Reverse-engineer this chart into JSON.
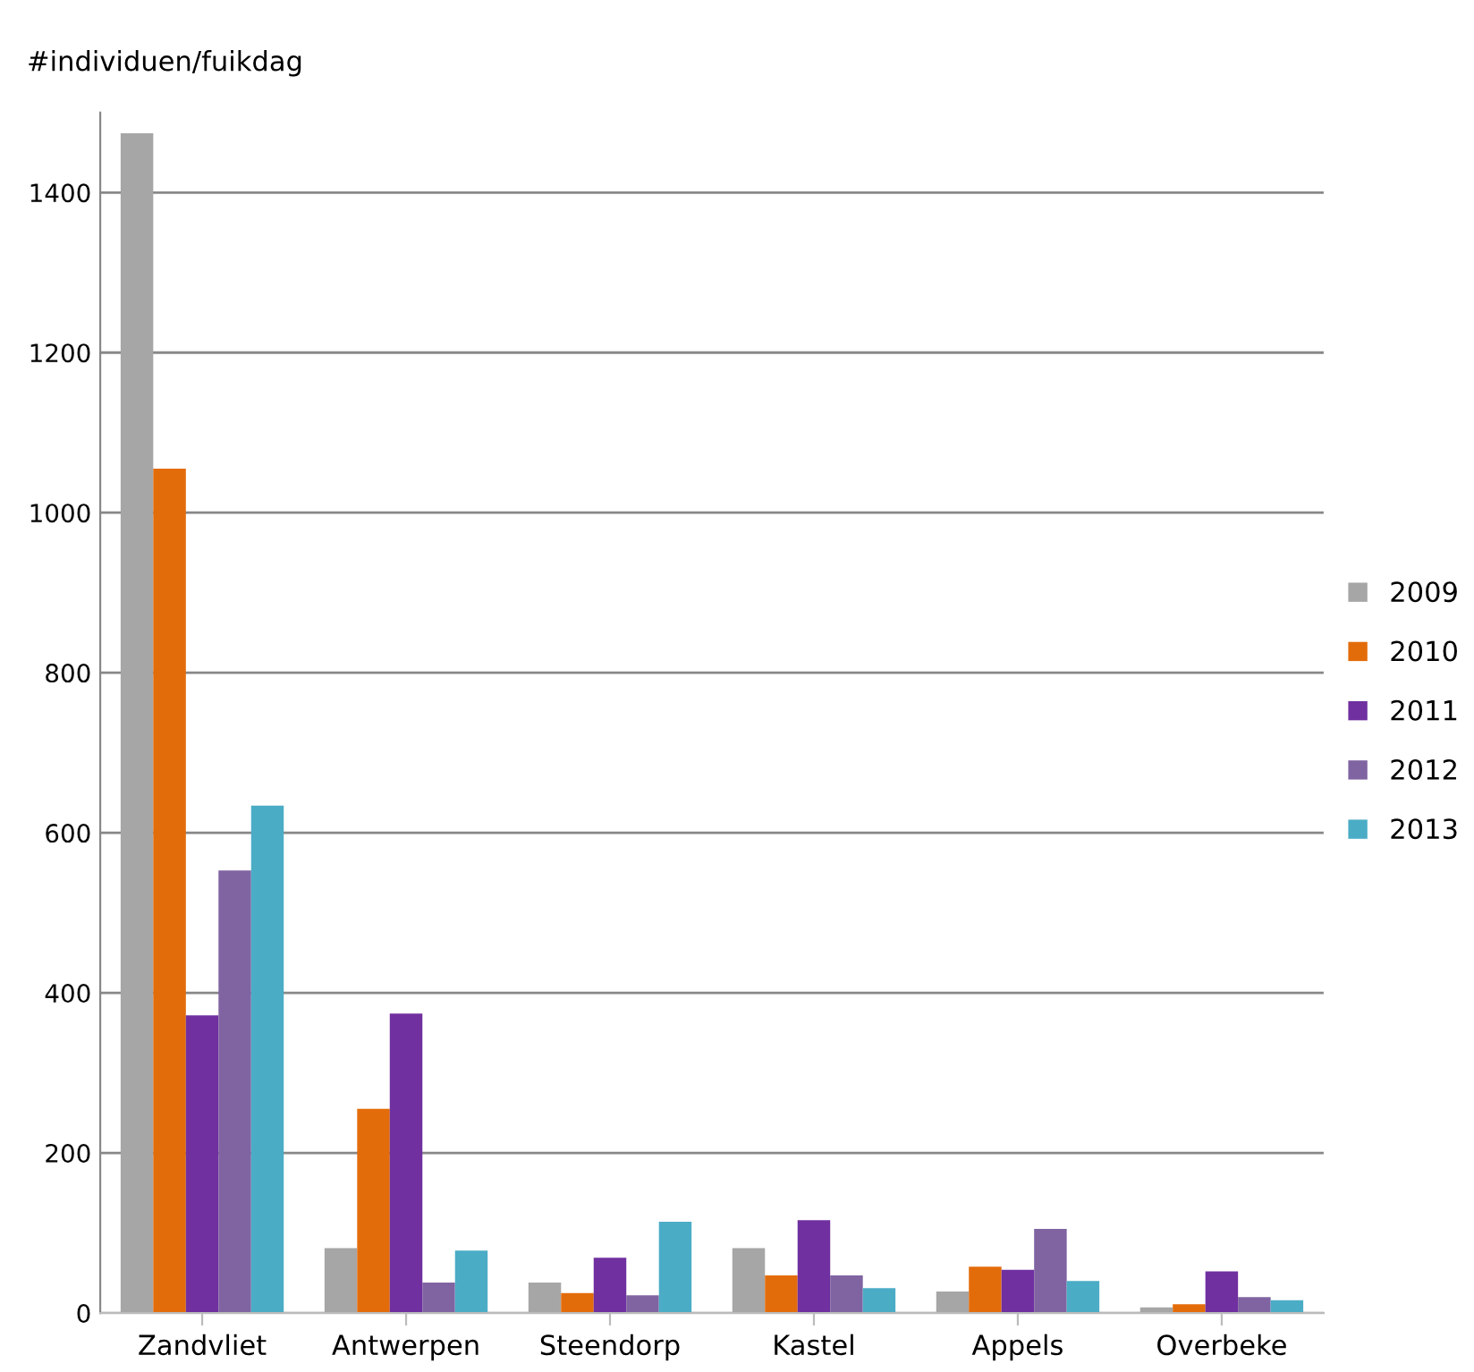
{
  "chart_data": {
    "type": "bar",
    "ylabel": "#individuen/fuikdag",
    "categories": [
      "Zandvliet",
      "Antwerpen",
      "Steendorp",
      "Kastel",
      "Appels",
      "Overbeke"
    ],
    "series": [
      {
        "name": "2009",
        "color": "#a6a6a6",
        "values": [
          1474,
          81,
          38,
          81,
          27,
          7
        ]
      },
      {
        "name": "2010",
        "color": "#e36c0a",
        "values": [
          1055,
          255,
          25,
          47,
          58,
          11
        ]
      },
      {
        "name": "2011",
        "color": "#7030a0",
        "values": [
          372,
          374,
          69,
          116,
          54,
          52
        ]
      },
      {
        "name": "2012",
        "color": "#8064a2",
        "values": [
          553,
          38,
          22,
          47,
          105,
          20
        ]
      },
      {
        "name": "2013",
        "color": "#4bacc6",
        "values": [
          634,
          78,
          114,
          31,
          40,
          16
        ]
      }
    ],
    "ylim": [
      0,
      1500
    ],
    "yticks": [
      0,
      200,
      400,
      600,
      800,
      1000,
      1200,
      1400
    ],
    "grid": "y",
    "legend": "right"
  }
}
